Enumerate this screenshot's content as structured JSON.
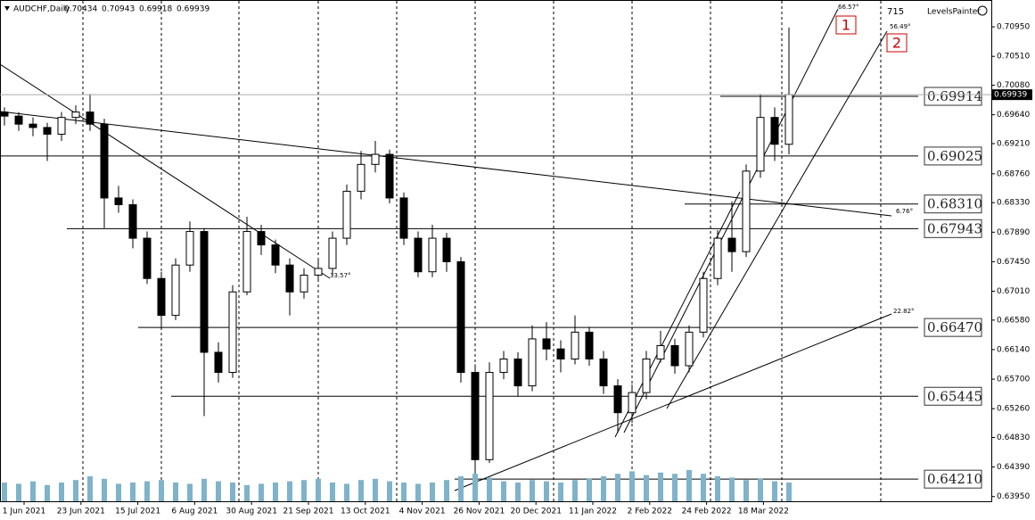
{
  "chart_data": {
    "type": "candlestick",
    "title": "AUDCHF,Daily",
    "header_ohlc": [
      0.70434,
      0.70943,
      0.69918,
      0.69939
    ],
    "categories": [
      "1 Jun 2021",
      "23 Jun 2021",
      "15 Jul 2021",
      "6 Aug 2021",
      "30 Aug 2021",
      "21 Sep 2021",
      "13 Oct 2021",
      "4 Nov 2021",
      "26 Nov 2021",
      "20 Dec 2021",
      "11 Jan 2022",
      "2 Feb 2022",
      "24 Feb 2022",
      "18 Mar 2022"
    ],
    "ylim": [
      0.6388,
      0.7135
    ],
    "yticks": [
      {
        "value": 0.7095,
        "label": "0.70950"
      },
      {
        "value": 0.7051,
        "label": "0.70510"
      },
      {
        "value": 0.7008,
        "label": "0.70080"
      },
      {
        "value": 0.6964,
        "label": "0.69640"
      },
      {
        "value": 0.6921,
        "label": "0.69210"
      },
      {
        "value": 0.6876,
        "label": "0.68760"
      },
      {
        "value": 0.6833,
        "label": "0.68330"
      },
      {
        "value": 0.6789,
        "label": "0.67890"
      },
      {
        "value": 0.6745,
        "label": "0.67450"
      },
      {
        "value": 0.6701,
        "label": "0.67010"
      },
      {
        "value": 0.6658,
        "label": "0.66580"
      },
      {
        "value": 0.6614,
        "label": "0.66140"
      },
      {
        "value": 0.657,
        "label": "0.65700"
      },
      {
        "value": 0.6526,
        "label": "0.65260"
      },
      {
        "value": 0.6483,
        "label": "0.64830"
      },
      {
        "value": 0.6439,
        "label": "0.64390"
      },
      {
        "value": 0.6395,
        "label": "0.63950"
      }
    ],
    "series": [
      {
        "name": "AUDCHF",
        "open": [
          0.6968,
          0.6962,
          0.695,
          0.6945,
          0.6935,
          0.696,
          0.6968,
          0.695,
          0.684,
          0.683,
          0.678,
          0.672,
          0.6665,
          0.674,
          0.679,
          0.661,
          0.658,
          0.67,
          0.679,
          0.677,
          0.674,
          0.67,
          0.6725,
          0.6735,
          0.678,
          0.685,
          0.689,
          0.6905,
          0.684,
          0.678,
          0.673,
          0.678,
          0.6745,
          0.658,
          0.645,
          0.658,
          0.66,
          0.656,
          0.663,
          0.6615,
          0.66,
          0.664,
          0.66,
          0.656,
          0.652,
          0.655,
          0.66,
          0.662,
          0.659,
          0.664,
          0.672,
          0.678,
          0.676,
          0.688,
          0.696,
          0.692
        ],
        "high": [
          0.6975,
          0.6968,
          0.696,
          0.6952,
          0.6968,
          0.6978,
          0.6995,
          0.6958,
          0.6858,
          0.6838,
          0.679,
          0.673,
          0.675,
          0.6805,
          0.6795,
          0.6625,
          0.671,
          0.6812,
          0.68,
          0.6778,
          0.675,
          0.6735,
          0.6748,
          0.679,
          0.686,
          0.691,
          0.6925,
          0.6912,
          0.6848,
          0.679,
          0.68,
          0.6788,
          0.6752,
          0.6592,
          0.6595,
          0.6612,
          0.661,
          0.665,
          0.6655,
          0.6628,
          0.6665,
          0.6648,
          0.6612,
          0.657,
          0.6562,
          0.6612,
          0.6642,
          0.663,
          0.665,
          0.673,
          0.6792,
          0.6835,
          0.689,
          0.6995,
          0.6975,
          0.7094
        ],
        "low": [
          0.6948,
          0.694,
          0.6932,
          0.6895,
          0.6925,
          0.695,
          0.694,
          0.6795,
          0.6818,
          0.6765,
          0.6712,
          0.6645,
          0.6658,
          0.673,
          0.6515,
          0.6565,
          0.6572,
          0.6695,
          0.6755,
          0.6728,
          0.6665,
          0.669,
          0.6715,
          0.6725,
          0.677,
          0.6838,
          0.6878,
          0.6832,
          0.677,
          0.6722,
          0.6722,
          0.673,
          0.6565,
          0.641,
          0.6445,
          0.657,
          0.6545,
          0.6552,
          0.6598,
          0.658,
          0.6592,
          0.659,
          0.6548,
          0.649,
          0.6505,
          0.654,
          0.6595,
          0.6578,
          0.658,
          0.6632,
          0.671,
          0.673,
          0.6752,
          0.687,
          0.6895,
          0.6905
        ],
        "close": [
          0.6962,
          0.695,
          0.6945,
          0.6935,
          0.696,
          0.6968,
          0.695,
          0.684,
          0.683,
          0.678,
          0.672,
          0.6665,
          0.674,
          0.679,
          0.661,
          0.658,
          0.67,
          0.679,
          0.677,
          0.674,
          0.67,
          0.6725,
          0.6735,
          0.678,
          0.685,
          0.689,
          0.6905,
          0.684,
          0.678,
          0.673,
          0.678,
          0.6745,
          0.658,
          0.645,
          0.658,
          0.66,
          0.656,
          0.663,
          0.6615,
          0.66,
          0.664,
          0.66,
          0.656,
          0.652,
          0.655,
          0.66,
          0.662,
          0.659,
          0.664,
          0.672,
          0.678,
          0.676,
          0.688,
          0.696,
          0.692,
          0.6994
        ],
        "volume": [
          30,
          28,
          32,
          26,
          30,
          34,
          40,
          36,
          28,
          30,
          32,
          34,
          30,
          28,
          36,
          32,
          30,
          26,
          28,
          30,
          32,
          34,
          36,
          30,
          28,
          34,
          36,
          32,
          30,
          28,
          30,
          34,
          40,
          44,
          38,
          32,
          30,
          34,
          32,
          30,
          34,
          36,
          40,
          44,
          48,
          42,
          46,
          44,
          50,
          44,
          40,
          38,
          34,
          36,
          32,
          30
        ],
        "color_up": "#000000",
        "color_down": "#000000"
      }
    ],
    "levels": [
      0.69914,
      0.69025,
      {
        "value": 0.6831,
        "label": "0.68310"
      },
      0.67943,
      {
        "value": 0.6647,
        "label": "0.66470"
      },
      0.65445,
      {
        "value": 0.6421,
        "label": "0.64210"
      }
    ],
    "annotations": [
      "66.57°",
      "56.49°",
      "6.76°",
      "33.57°",
      "22.82°",
      "1",
      "2"
    ],
    "indicator_value": 715,
    "indicator_name": "LevelsPainter"
  }
}
